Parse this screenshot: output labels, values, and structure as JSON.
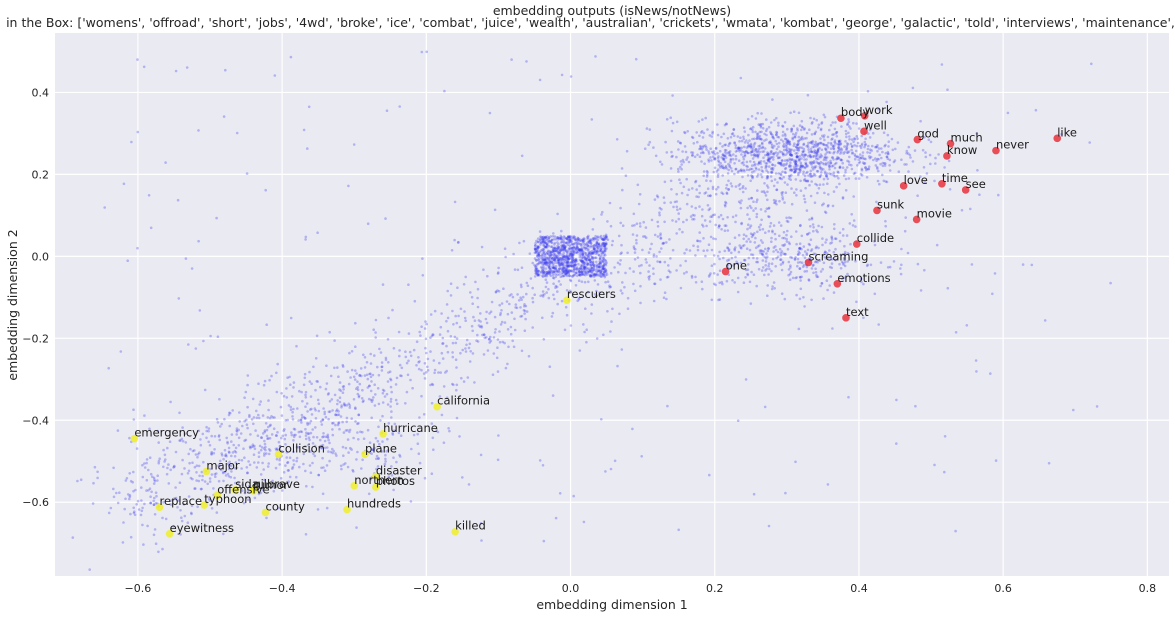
{
  "chart_data": {
    "type": "scatter",
    "title": "embedding outputs (isNews/notNews)",
    "subtitle": "in the Box: ['womens', 'offroad', 'short', 'jobs', '4wd', 'broke', 'ice', 'combat', 'juice', 'wealth', 'australian', 'crickets', 'wmata', 'kombat', 'george', 'galactic', 'told', 'interviews', 'maintenance', 'narc']",
    "xlabel": "embedding dimension 1",
    "ylabel": "embedding dimension 2",
    "xlim": [
      -0.715,
      0.83
    ],
    "ylim": [
      -0.78,
      0.545
    ],
    "xticks": [
      -0.6,
      -0.4,
      -0.2,
      0.0,
      0.2,
      0.4,
      0.6,
      0.8
    ],
    "xtick_labels": [
      "−0.6",
      "−0.4",
      "−0.2",
      "0.0",
      "0.2",
      "0.4",
      "0.6",
      "0.8"
    ],
    "yticks": [
      -0.6,
      -0.4,
      -0.2,
      0.0,
      0.2,
      0.4
    ],
    "ytick_labels": [
      "−0.6",
      "−0.4",
      "−0.2",
      "0.0",
      "0.2",
      "0.4"
    ],
    "grid": true,
    "background": {
      "description": "several thousand small translucent blue points forming a diagonal cloud; dense rectangular block around the origin (the Box), a dense cluster near (0.3, 0.25) and a lower band near (0.3, 0.0)",
      "color": "#3a3af0",
      "box_x": [
        -0.05,
        0.05
      ],
      "box_y": [
        -0.05,
        0.05
      ]
    },
    "series": [
      {
        "name": "notNews",
        "color": "#e8333c",
        "points": [
          {
            "label": "body",
            "x": 0.375,
            "y": 0.337
          },
          {
            "label": "work",
            "x": 0.408,
            "y": 0.343
          },
          {
            "label": "well",
            "x": 0.407,
            "y": 0.305
          },
          {
            "label": "god",
            "x": 0.481,
            "y": 0.285
          },
          {
            "label": "much",
            "x": 0.527,
            "y": 0.275
          },
          {
            "label": "know",
            "x": 0.522,
            "y": 0.245
          },
          {
            "label": "never",
            "x": 0.59,
            "y": 0.258
          },
          {
            "label": "like",
            "x": 0.675,
            "y": 0.288
          },
          {
            "label": "love",
            "x": 0.462,
            "y": 0.172
          },
          {
            "label": "time",
            "x": 0.515,
            "y": 0.177
          },
          {
            "label": "see",
            "x": 0.548,
            "y": 0.162
          },
          {
            "label": "sunk",
            "x": 0.425,
            "y": 0.112
          },
          {
            "label": "movie",
            "x": 0.48,
            "y": 0.09
          },
          {
            "label": "collide",
            "x": 0.397,
            "y": 0.03
          },
          {
            "label": "one",
            "x": 0.215,
            "y": -0.037
          },
          {
            "label": "screaming",
            "x": 0.33,
            "y": -0.015
          },
          {
            "label": "emotions",
            "x": 0.37,
            "y": -0.067
          },
          {
            "label": "text",
            "x": 0.382,
            "y": -0.15
          }
        ]
      },
      {
        "name": "isNews",
        "color": "#f0ee2a",
        "points": [
          {
            "label": "rescuers",
            "x": -0.005,
            "y": -0.107
          },
          {
            "label": "california",
            "x": -0.185,
            "y": -0.367
          },
          {
            "label": "hurricane",
            "x": -0.26,
            "y": -0.433
          },
          {
            "label": "emergency",
            "x": -0.605,
            "y": -0.445
          },
          {
            "label": "collision",
            "x": -0.405,
            "y": -0.483
          },
          {
            "label": "plane",
            "x": -0.285,
            "y": -0.483
          },
          {
            "label": "major",
            "x": -0.505,
            "y": -0.525
          },
          {
            "label": "disaster",
            "x": -0.27,
            "y": -0.537
          },
          {
            "label": "northern",
            "x": -0.3,
            "y": -0.56
          },
          {
            "label": "photos",
            "x": -0.27,
            "y": -0.563
          },
          {
            "label": "rumor",
            "x": -0.44,
            "y": -0.572
          },
          {
            "label": "gilbrave",
            "x": -0.44,
            "y": -0.57
          },
          {
            "label": "sida",
            "x": -0.465,
            "y": -0.57
          },
          {
            "label": "offensive",
            "x": -0.49,
            "y": -0.583
          },
          {
            "label": "typhoon",
            "x": -0.508,
            "y": -0.607
          },
          {
            "label": "replace",
            "x": -0.57,
            "y": -0.612
          },
          {
            "label": "county",
            "x": -0.423,
            "y": -0.625
          },
          {
            "label": "hundreds",
            "x": -0.31,
            "y": -0.618
          },
          {
            "label": "eyewitness",
            "x": -0.556,
            "y": -0.677
          },
          {
            "label": "killed",
            "x": -0.16,
            "y": -0.672
          }
        ]
      }
    ]
  }
}
